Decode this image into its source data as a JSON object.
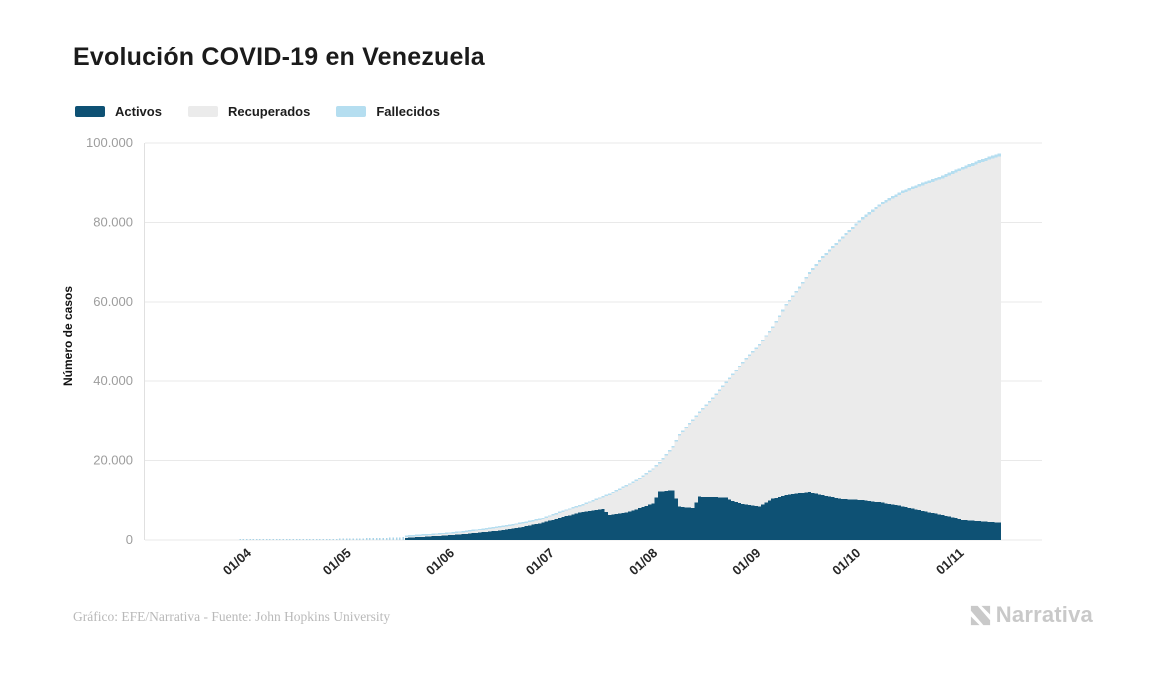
{
  "title": "Evolución COVID-19 en Venezuela",
  "legend": [
    {
      "label": "Activos",
      "color": "#0e5174"
    },
    {
      "label": "Recuperados",
      "color": "#ebebeb"
    },
    {
      "label": "Fallecidos",
      "color": "#b5def0"
    }
  ],
  "y_axis": {
    "label": "Número de casos",
    "ticks": [
      "0",
      "20.000",
      "40.000",
      "60.000",
      "80.000",
      "100.000"
    ],
    "tick_values": [
      0,
      20000,
      40000,
      60000,
      80000,
      100000
    ]
  },
  "x_axis": {
    "ticks": [
      "01/04",
      "01/05",
      "01/06",
      "01/07",
      "01/08",
      "01/09",
      "01/10",
      "01/11"
    ]
  },
  "footer": "Gráfico: EFE/Narrativa - Fuente: John Hopkins University",
  "brand": "Narrativa",
  "chart_data": {
    "type": "area",
    "stacking": "normal",
    "title": "Evolución COVID-19 en Venezuela",
    "xlabel": "",
    "ylabel": "Número de casos",
    "ylim": [
      0,
      100000
    ],
    "series_names": [
      "Activos",
      "Recuperados",
      "Fallecidos"
    ],
    "colors": {
      "activos": "#0e5174",
      "recuperados": "#ebebeb",
      "fallecidos": "#b5def0"
    },
    "keypoints": [
      {
        "date": "14/03",
        "activos": 2,
        "recuperados": 0,
        "fallecidos": 0
      },
      {
        "date": "26/03",
        "activos": 105,
        "recuperados": 1,
        "fallecidos": 1
      },
      {
        "date": "01/04",
        "activos": 120,
        "recuperados": 21,
        "fallecidos": 3
      },
      {
        "date": "15/04",
        "activos": 150,
        "recuperados": 45,
        "fallecidos": 9
      },
      {
        "date": "01/05",
        "activos": 250,
        "recuperados": 85,
        "fallecidos": 10
      },
      {
        "date": "15/05",
        "activos": 420,
        "recuperados": 188,
        "fallecidos": 10
      },
      {
        "date": "01/06",
        "activos": 1250,
        "recuperados": 398,
        "fallecidos": 14
      },
      {
        "date": "08/06",
        "activos": 1800,
        "recuperados": 555,
        "fallecidos": 22
      },
      {
        "date": "15/06",
        "activos": 2400,
        "recuperados": 723,
        "fallecidos": 27
      },
      {
        "date": "22/06",
        "activos": 3300,
        "recuperados": 852,
        "fallecidos": 35
      },
      {
        "date": "28/06",
        "activos": 4400,
        "recuperados": 853,
        "fallecidos": 44
      },
      {
        "date": "04/07",
        "activos": 5800,
        "recuperados": 1304,
        "fallecidos": 65
      },
      {
        "date": "10/07",
        "activos": 7100,
        "recuperados": 1620,
        "fallecidos": 83
      },
      {
        "date": "16/07",
        "activos": 7800,
        "recuperados": 2950,
        "fallecidos": 104
      },
      {
        "date": "18/07",
        "activos": 6300,
        "recuperados": 5075,
        "fallecidos": 108
      },
      {
        "date": "23/07",
        "activos": 6900,
        "recuperados": 6584,
        "fallecidos": 129
      },
      {
        "date": "27/07",
        "activos": 8000,
        "recuperados": 7321,
        "fallecidos": 142
      },
      {
        "date": "31/07",
        "activos": 9200,
        "recuperados": 8501,
        "fallecidos": 158
      },
      {
        "date": "02/08",
        "activos": 12200,
        "recuperados": 7077,
        "fallecidos": 166
      },
      {
        "date": "06/08",
        "activos": 12500,
        "recuperados": 10820,
        "fallecidos": 180
      },
      {
        "date": "08/08",
        "activos": 8400,
        "recuperados": 17913,
        "fallecidos": 187
      },
      {
        "date": "12/08",
        "activos": 8100,
        "recuperados": 21900,
        "fallecidos": 200
      },
      {
        "date": "14/08",
        "activos": 10900,
        "recuperados": 21090,
        "fallecidos": 210
      },
      {
        "date": "18/08",
        "activos": 10800,
        "recuperados": 24773,
        "fallecidos": 227
      },
      {
        "date": "22/08",
        "activos": 10700,
        "recuperados": 28850,
        "fallecidos": 250
      },
      {
        "date": "24/08",
        "activos": 9800,
        "recuperados": 31740,
        "fallecidos": 260
      },
      {
        "date": "28/08",
        "activos": 8900,
        "recuperados": 36610,
        "fallecidos": 290
      },
      {
        "date": "01/09",
        "activos": 8400,
        "recuperados": 40567,
        "fallecidos": 333
      },
      {
        "date": "05/09",
        "activos": 10400,
        "recuperados": 43040,
        "fallecidos": 360
      },
      {
        "date": "09/09",
        "activos": 11300,
        "recuperados": 47710,
        "fallecidos": 390
      },
      {
        "date": "13/09",
        "activos": 11800,
        "recuperados": 51580,
        "fallecidos": 420
      },
      {
        "date": "16/09",
        "activos": 12100,
        "recuperados": 54955,
        "fallecidos": 445
      },
      {
        "date": "20/09",
        "activos": 11300,
        "recuperados": 59725,
        "fallecidos": 475
      },
      {
        "date": "26/09",
        "activos": 10300,
        "recuperados": 65690,
        "fallecidos": 510
      },
      {
        "date": "02/10",
        "activos": 10100,
        "recuperados": 70645,
        "fallecidos": 555
      },
      {
        "date": "08/10",
        "activos": 9400,
        "recuperados": 75210,
        "fallecidos": 590
      },
      {
        "date": "14/10",
        "activos": 8500,
        "recuperados": 78875,
        "fallecidos": 625
      },
      {
        "date": "20/10",
        "activos": 7300,
        "recuperados": 82040,
        "fallecidos": 660
      },
      {
        "date": "26/10",
        "activos": 6300,
        "recuperados": 84805,
        "fallecidos": 695
      },
      {
        "date": "01/11",
        "activos": 5100,
        "recuperados": 88170,
        "fallecidos": 730
      },
      {
        "date": "07/11",
        "activos": 4700,
        "recuperados": 90540,
        "fallecidos": 760
      },
      {
        "date": "12/11",
        "activos": 4400,
        "recuperados": 92220,
        "fallecidos": 780
      }
    ]
  }
}
